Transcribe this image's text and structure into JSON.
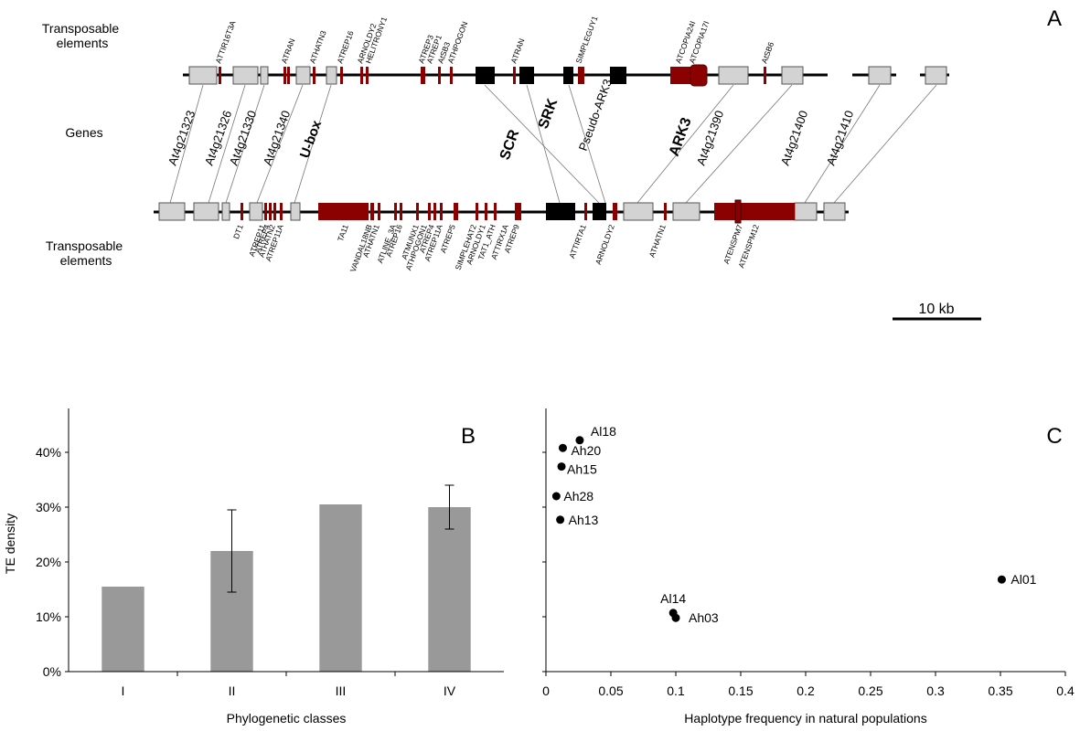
{
  "panel_a": {
    "panel_label": "A",
    "top_row_label": [
      "Transposable",
      "elements"
    ],
    "genes_label": "Genes",
    "bottom_row_label": [
      "Transposable",
      "elements"
    ],
    "top_te_labels": [
      "ATTIR16T3A",
      "ATRAN",
      "ATHATN3",
      "ATREP16",
      "ARNOLDY2",
      "HELITRONY1",
      "ATREP3",
      "ATREP1",
      "AtSB3",
      "ATHPOGON",
      "ATRAN",
      "SIMPLEGUY1",
      "ATCOPIA24I",
      "ATCOPIA17I",
      "AtSB6"
    ],
    "gene_labels": [
      "At4g21323",
      "At4g21326",
      "At4g21330",
      "At4g21340",
      "U-box",
      "SCR",
      "SRK",
      "Pseudo-ARK3",
      "ARK3",
      "At4g21390",
      "At4g21400",
      "At4g21410"
    ],
    "bottom_te_labels": [
      "DT1",
      "ATREP11",
      "ATREP4",
      "ATHATN2",
      "ATREP11A",
      "TA11",
      "VANDAL18NB",
      "ATHATN1",
      "ATLINE_3A",
      "ATREP16",
      "ATMUNX1",
      "ATHPOGON1",
      "ATREP4",
      "ATREP11A",
      "ATREP5",
      "SIMPLEHAT2",
      "ARNOLDY1",
      "TAT1_ATH",
      "ATTIRX1A",
      "ATREP9",
      "ATTIRTA1",
      "ARNOLDY2",
      "ATHATN1",
      "ATENSPM7",
      "ATENSPM12"
    ],
    "scale_label": "10 kb",
    "colors": {
      "gene": "#d3d3d3",
      "te": "#8b0000",
      "s_locus": "#000000"
    }
  },
  "chart_data": [
    {
      "type": "bar",
      "panel_label": "B",
      "categories": [
        "I",
        "II",
        "III",
        "IV"
      ],
      "values": [
        15.5,
        22.0,
        30.5,
        30.0
      ],
      "error": [
        null,
        7.5,
        null,
        4.0
      ],
      "ylabel": "TE density",
      "xlabel": "Phylogenetic classes",
      "ylim": [
        0,
        48
      ],
      "yticks": [
        "0%",
        "10%",
        "20%",
        "30%",
        "40%"
      ],
      "ytick_values": [
        0,
        10,
        20,
        30,
        40
      ],
      "bar_color": "#999999"
    },
    {
      "type": "scatter",
      "panel_label": "C",
      "points": [
        {
          "label": "Al18",
          "x": 0.026,
          "y": 42.2
        },
        {
          "label": "Ah20",
          "x": 0.013,
          "y": 40.8
        },
        {
          "label": "Ah15",
          "x": 0.012,
          "y": 37.4
        },
        {
          "label": "Ah28",
          "x": 0.008,
          "y": 32.0
        },
        {
          "label": "Ah13",
          "x": 0.011,
          "y": 27.7
        },
        {
          "label": "Al01",
          "x": 0.351,
          "y": 16.8
        },
        {
          "label": "Al14",
          "x": 0.098,
          "y": 10.7
        },
        {
          "label": "Ah03",
          "x": 0.1,
          "y": 9.8
        }
      ],
      "xlabel": "Haplotype frequency in natural populations",
      "xlim": [
        0,
        0.4
      ],
      "xticks": [
        "0",
        "0.05",
        "0.1",
        "0.15",
        "0.2",
        "0.25",
        "0.3",
        "0.35",
        "0.4"
      ],
      "xtick_values": [
        0,
        0.05,
        0.1,
        0.15,
        0.2,
        0.25,
        0.3,
        0.35,
        0.4
      ],
      "ylim": [
        0,
        48
      ],
      "point_color": "#000000"
    }
  ]
}
